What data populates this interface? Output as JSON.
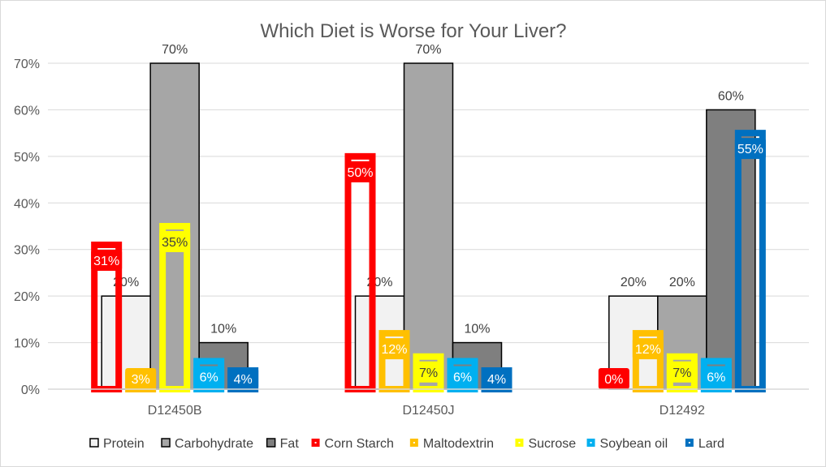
{
  "chart_data": {
    "type": "bar",
    "title": "Which Diet is Worse for Your Liver?",
    "xlabel": "",
    "ylabel": "",
    "ylim": [
      0,
      0.7
    ],
    "yticks": [
      "0%",
      "10%",
      "20%",
      "30%",
      "40%",
      "50%",
      "60%",
      "70%"
    ],
    "grid": true,
    "legend_position": "bottom",
    "categories": [
      "D12450B",
      "D12450J",
      "D12492"
    ],
    "series": [
      {
        "name": "Protein",
        "group": "macro",
        "color": "#f2f2f2",
        "values": [
          0.2,
          0.2,
          0.2
        ],
        "labels": [
          "20%",
          "20%",
          "20%"
        ]
      },
      {
        "name": "Carbohydrate",
        "group": "macro",
        "color": "#a6a6a6",
        "values": [
          0.7,
          0.7,
          0.2
        ],
        "labels": [
          "70%",
          "70%",
          "20%"
        ]
      },
      {
        "name": "Fat",
        "group": "macro",
        "color": "#7f7f7f",
        "values": [
          0.1,
          0.1,
          0.6
        ],
        "labels": [
          "10%",
          "10%",
          "60%"
        ]
      },
      {
        "name": "Corn Starch",
        "group": "ingredient",
        "color": "#ff0000",
        "values": [
          0.31,
          0.5,
          0.0
        ],
        "labels": [
          "31%",
          "50%",
          "0%"
        ]
      },
      {
        "name": "Maltodextrin",
        "group": "ingredient",
        "color": "#ffc000",
        "values": [
          0.03,
          0.12,
          0.12
        ],
        "labels": [
          "3%",
          "12%",
          "12%"
        ]
      },
      {
        "name": "Sucrose",
        "group": "ingredient",
        "color": "#ffff00",
        "values": [
          0.35,
          0.07,
          0.07
        ],
        "labels": [
          "35%",
          "7%",
          "7%"
        ]
      },
      {
        "name": "Soybean oil",
        "group": "ingredient",
        "color": "#00b0f0",
        "values": [
          0.06,
          0.06,
          0.06
        ],
        "labels": [
          "6%",
          "6%",
          "6%"
        ]
      },
      {
        "name": "Lard",
        "group": "ingredient",
        "color": "#0070c0",
        "values": [
          0.04,
          0.04,
          0.55
        ],
        "labels": [
          "4%",
          "4%",
          "55%"
        ]
      }
    ]
  }
}
